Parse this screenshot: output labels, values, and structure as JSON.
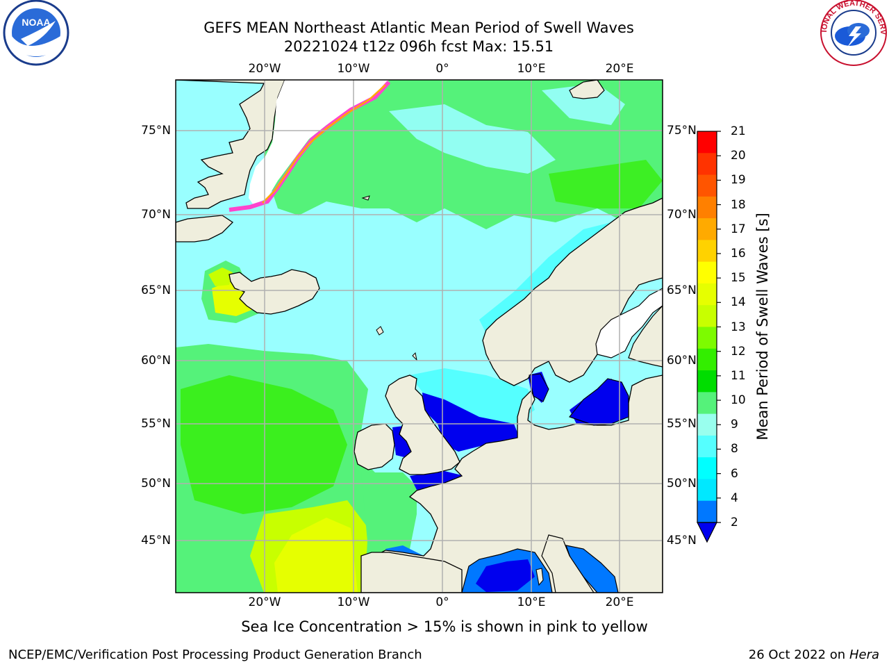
{
  "title": {
    "line1": "GEFS MEAN Northeast Atlantic Mean Period of Swell Waves",
    "line2": "20221024 t12z 096h fcst   Max: 15.51"
  },
  "lat_labels": [
    "75°N",
    "70°N",
    "65°N",
    "60°N",
    "55°N",
    "50°N",
    "45°N"
  ],
  "lon_labels": [
    "20°W",
    "10°W",
    "0°",
    "10°E",
    "20°E"
  ],
  "colorbar": {
    "title": "Mean Period of Swell Waves [s]",
    "ticks": [
      "21",
      "20",
      "19",
      "18",
      "17",
      "16",
      "15",
      "14",
      "13",
      "12",
      "11",
      "10",
      "9",
      "8",
      "6",
      "4",
      "2"
    ],
    "colors": [
      "#ff0000",
      "#ff3300",
      "#ff5500",
      "#ff8000",
      "#ffaa00",
      "#ffd200",
      "#ffff00",
      "#e6ff00",
      "#c8ff00",
      "#7dfb00",
      "#33ee00",
      "#00dd00",
      "#55f27a",
      "#99ffee",
      "#55ffff",
      "#00ffff",
      "#00e8ff",
      "#0078ff"
    ],
    "extend_color": "#0000ee"
  },
  "sea_ice_note": "Sea Ice Concentration > 15% is shown in pink to yellow",
  "footer": {
    "org": "NCEP/EMC/Verification Post Processing Product Generation Branch",
    "date": "26 Oct 2022 on",
    "host": "Hera"
  },
  "logos": {
    "noaa": "NOAA",
    "nws_ring": "NATIONAL WEATHER SERVICE"
  },
  "colors": {
    "land": "#efeedd",
    "ocean_light": "#99ffff",
    "ocean_green": "#55f27a",
    "ocean_yellow": "#e6ff00",
    "shallow_blue": "#0000ee",
    "gridline": "#b0b0b0"
  }
}
